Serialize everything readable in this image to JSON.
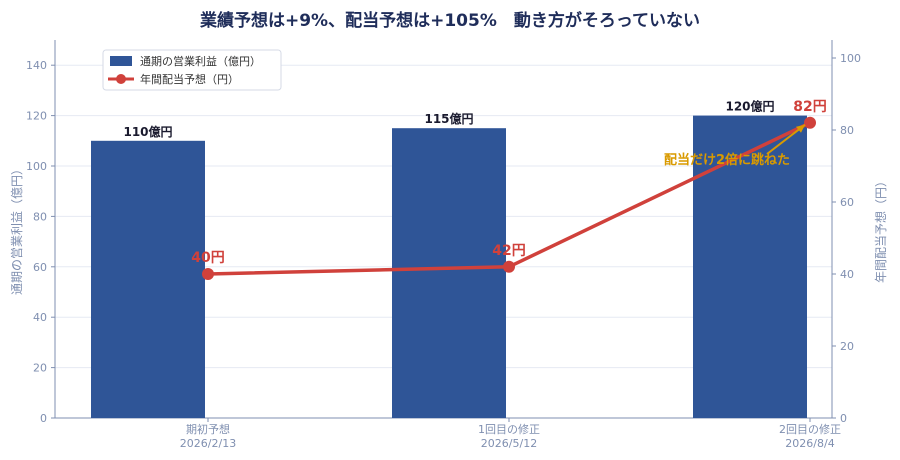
{
  "chart_data": {
    "type": "bar",
    "title": "業績予想は+9%、配当予想は+105%　動き方がそろっていない",
    "categories": [
      {
        "line1": "期初予想",
        "line2": "2026/2/13"
      },
      {
        "line1": "1回目の修正",
        "line2": "2026/5/12"
      },
      {
        "line1": "2回目の修正",
        "line2": "2026/8/4"
      }
    ],
    "series": [
      {
        "name": "通期の営業利益（億円）",
        "kind": "bar",
        "axis": "left",
        "values": [
          110,
          115,
          120
        ],
        "labels": [
          "110億円",
          "115億円",
          "120億円"
        ],
        "color": "#2f5597"
      },
      {
        "name": "年間配当予想（円）",
        "kind": "line",
        "axis": "right",
        "values": [
          40,
          42,
          82
        ],
        "labels": [
          "40円",
          "42円",
          "82円"
        ],
        "color": "#d0413b"
      }
    ],
    "ylabel": "通期の営業利益（億円）",
    "ylabel_right": "年間配当予想（円）",
    "ylim": [
      0,
      150
    ],
    "ylim_right": [
      0,
      105
    ],
    "yticks": [
      0,
      20,
      40,
      60,
      80,
      100,
      120,
      140
    ],
    "yticks_right": [
      0,
      20,
      40,
      60,
      80,
      100
    ],
    "grid": true,
    "legend": "top-left",
    "annotation": {
      "text": "配当だけ2倍に跳ねた",
      "color": "#d99a00",
      "points_to_category": 2
    },
    "colors": {
      "title": "#1f2d5a",
      "axis": "#7f8fb0",
      "grid": "#e6eaf3",
      "bar_label": "#1a1a2e"
    }
  }
}
